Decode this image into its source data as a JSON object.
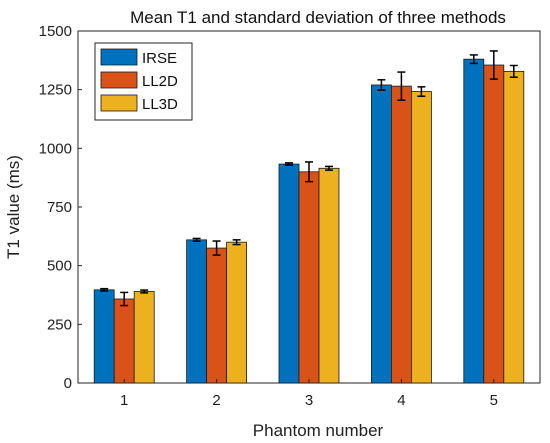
{
  "chart_data": {
    "type": "bar",
    "title": "Mean T1 and standard deviation of three methods",
    "xlabel": "Phantom number",
    "ylabel": "T1 value (ms)",
    "categories": [
      "1",
      "2",
      "3",
      "4",
      "5"
    ],
    "ylim": [
      0,
      1500
    ],
    "yticks": [
      0,
      250,
      500,
      750,
      1000,
      1250,
      1500
    ],
    "grid": false,
    "legend_position": "top-left",
    "series": [
      {
        "name": "IRSE",
        "color": "#0072BD",
        "values": [
          397,
          610,
          933,
          1270,
          1380
        ],
        "errors": [
          5,
          6,
          5,
          22,
          18
        ]
      },
      {
        "name": "LL2D",
        "color": "#D95319",
        "values": [
          358,
          575,
          900,
          1265,
          1355
        ],
        "errors": [
          28,
          30,
          42,
          60,
          60
        ]
      },
      {
        "name": "LL3D",
        "color": "#EDB120",
        "values": [
          390,
          600,
          915,
          1242,
          1328
        ],
        "errors": [
          6,
          10,
          8,
          20,
          25
        ]
      }
    ]
  }
}
